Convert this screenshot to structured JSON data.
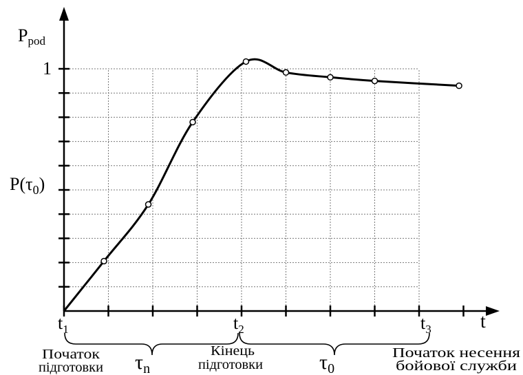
{
  "chart_data": {
    "type": "line",
    "title": "",
    "ylabel_base": "P",
    "ylabel_sub": "pod",
    "xlabel": "t",
    "ylim": [
      0,
      1.1
    ],
    "y_tick_labels": [
      {
        "value": 1,
        "text": "1"
      },
      {
        "value": 0.55,
        "base": "P(τ",
        "sub": "0",
        "close": ")"
      }
    ],
    "x_tick_labels": [
      {
        "value": 0,
        "base": "t",
        "sub": "1"
      },
      {
        "value": 4,
        "base": "t",
        "sub": "2"
      },
      {
        "value": 8,
        "base": "t",
        "sub": "3"
      }
    ],
    "x": [
      0,
      0.9,
      1.9,
      2.9,
      4.1,
      5.0,
      6.0,
      7.0,
      8.9
    ],
    "y": [
      0,
      0.206,
      0.44,
      0.78,
      1.03,
      0.985,
      0.965,
      0.95,
      0.93
    ],
    "markers": [
      {
        "x": 0.9,
        "y": 0.206
      },
      {
        "x": 1.9,
        "y": 0.44
      },
      {
        "x": 2.9,
        "y": 0.78
      },
      {
        "x": 4.1,
        "y": 1.03
      },
      {
        "x": 5.0,
        "y": 0.985
      },
      {
        "x": 6.0,
        "y": 0.965
      },
      {
        "x": 7.0,
        "y": 0.95
      },
      {
        "x": 8.9,
        "y": 0.93
      }
    ],
    "grid": true,
    "annotations": {
      "phase1": {
        "base": "τ",
        "sub": "n"
      },
      "phase2": {
        "base": "τ",
        "sub": "0"
      },
      "start_line1": "Початок",
      "start_line2": "підготовки",
      "end_line1": "Кінець",
      "end_line2": "підготовки",
      "duty_line1": "Початок несення",
      "duty_line2": "бойової служби"
    }
  }
}
